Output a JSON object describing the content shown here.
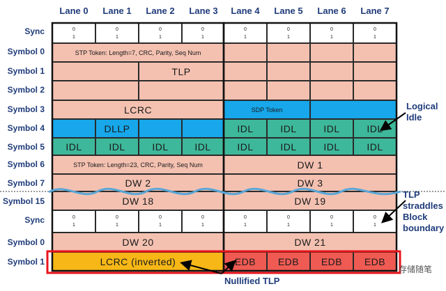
{
  "lanes": [
    "Lane 0",
    "Lane 1",
    "Lane 2",
    "Lane 3",
    "Lane 4",
    "Lane 5",
    "Lane 6",
    "Lane 7"
  ],
  "rows": [
    "Sync",
    "Symbol 0",
    "Symbol 1",
    "Symbol 2",
    "Symbol 3",
    "Symbol 4",
    "Symbol 5",
    "Symbol 6",
    "Symbol 7",
    "Symbol 15",
    "Sync",
    "Symbol 0",
    "Symbol 1"
  ],
  "sync_top": "0",
  "sync_bottom": "1",
  "cells": {
    "stp_token_1": "STP Token: Length=7, CRC, Parity, Seq Num",
    "tlp": "TLP",
    "lcrc": "LCRC",
    "sdp_token": "SDP Token",
    "dllp": "DLLP",
    "idl": "IDL",
    "stp_token_2": "STP Token: Length=23, CRC, Parity, Seq Num",
    "dw1": "DW 1",
    "dw2": "DW 2",
    "dw3": "DW 3",
    "dw18": "DW 18",
    "dw19": "DW 19",
    "dw20": "DW 20",
    "dw21": "DW 21",
    "lcrc_inverted": "LCRC (inverted)",
    "edb": "EDB"
  },
  "annotations": {
    "logical_idle": [
      "Logical",
      "Idle"
    ],
    "tlp_straddles": [
      "TLP",
      "straddles",
      "Block",
      "boundary"
    ],
    "nullified_tlp": "Nullified TLP"
  },
  "watermark": "存储随笔",
  "colors": {
    "pink": "#f4c1b1",
    "blue": "#17a7ea",
    "green": "#3eb89a",
    "yellow": "#f6b717",
    "red": "#ef5b53",
    "highlight_border": "#e8141b",
    "wave": "#5aa6d6",
    "text_navy": "#1f3b7a"
  }
}
